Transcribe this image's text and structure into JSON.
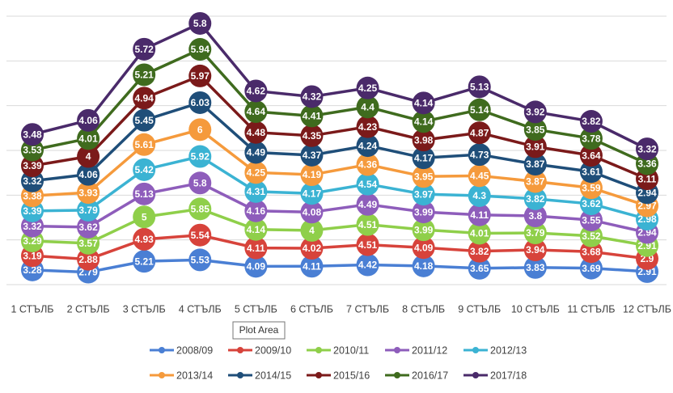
{
  "chart_data": {
    "type": "stacked-line",
    "categories": [
      "1 СТЪЛБ",
      "2 СТЪЛБ",
      "3 СТЪЛБ",
      "4 СТЪЛБ",
      "5 СТЪЛБ",
      "6 СТЪЛБ",
      "7 СТЪЛБ",
      "8 СТЪЛБ",
      "9 СТЪЛБ",
      "10 СТЪЛБ",
      "11 СТЪЛБ",
      "12 СТЪЛБ"
    ],
    "series": [
      {
        "name": "2008/09",
        "color": "#4a7fd4",
        "values": [
          3.28,
          2.79,
          5.21,
          5.53,
          4.09,
          4.11,
          4.42,
          4.18,
          3.65,
          3.83,
          3.69,
          2.91
        ]
      },
      {
        "name": "2009/10",
        "color": "#d7433b",
        "values": [
          3.19,
          2.88,
          4.93,
          5.54,
          4.11,
          4.02,
          4.51,
          4.09,
          3.82,
          3.94,
          3.68,
          2.9
        ]
      },
      {
        "name": "2010/11",
        "color": "#8fcf4a",
        "values": [
          3.29,
          3.57,
          5,
          5.85,
          4.14,
          4,
          4.51,
          3.99,
          4.01,
          3.79,
          3.52,
          2.91
        ]
      },
      {
        "name": "2011/12",
        "color": "#8e5dbb",
        "values": [
          3.32,
          3.62,
          5.13,
          5.8,
          4.16,
          4.08,
          4.49,
          3.99,
          4.11,
          3.8,
          3.55,
          2.94
        ]
      },
      {
        "name": "2012/13",
        "color": "#3bb3d3",
        "values": [
          3.39,
          3.79,
          5.42,
          5.92,
          4.31,
          4.17,
          4.54,
          3.97,
          4.3,
          3.82,
          3.62,
          2.98
        ]
      },
      {
        "name": "2013/14",
        "color": "#f59a3c",
        "values": [
          3.38,
          3.93,
          5.61,
          6,
          4.25,
          4.19,
          4.36,
          3.95,
          4.45,
          3.87,
          3.59,
          2.97
        ]
      },
      {
        "name": "2014/15",
        "color": "#1f4e79",
        "values": [
          3.32,
          4.06,
          5.45,
          6.03,
          4.49,
          4.37,
          4.24,
          4.17,
          4.73,
          3.87,
          3.61,
          2.94
        ]
      },
      {
        "name": "2015/16",
        "color": "#7b1a1a",
        "values": [
          3.39,
          4,
          4.94,
          5.97,
          4.48,
          4.35,
          4.23,
          3.98,
          4.87,
          3.91,
          3.64,
          3.11
        ]
      },
      {
        "name": "2016/17",
        "color": "#3f6b1e",
        "values": [
          3.53,
          4.01,
          5.21,
          5.94,
          4.64,
          4.41,
          4.4,
          4.14,
          5.14,
          3.85,
          3.78,
          3.36
        ]
      },
      {
        "name": "2017/18",
        "color": "#4a2a6a",
        "values": [
          3.48,
          4.06,
          5.72,
          5.8,
          4.62,
          4.32,
          4.25,
          4.14,
          5.13,
          3.92,
          3.82,
          3.32
        ]
      }
    ],
    "ylim": [
      0,
      60
    ],
    "yticks": [
      0,
      10,
      20,
      30,
      40,
      50,
      60
    ],
    "grid": true,
    "tooltip": "Plot Area"
  }
}
